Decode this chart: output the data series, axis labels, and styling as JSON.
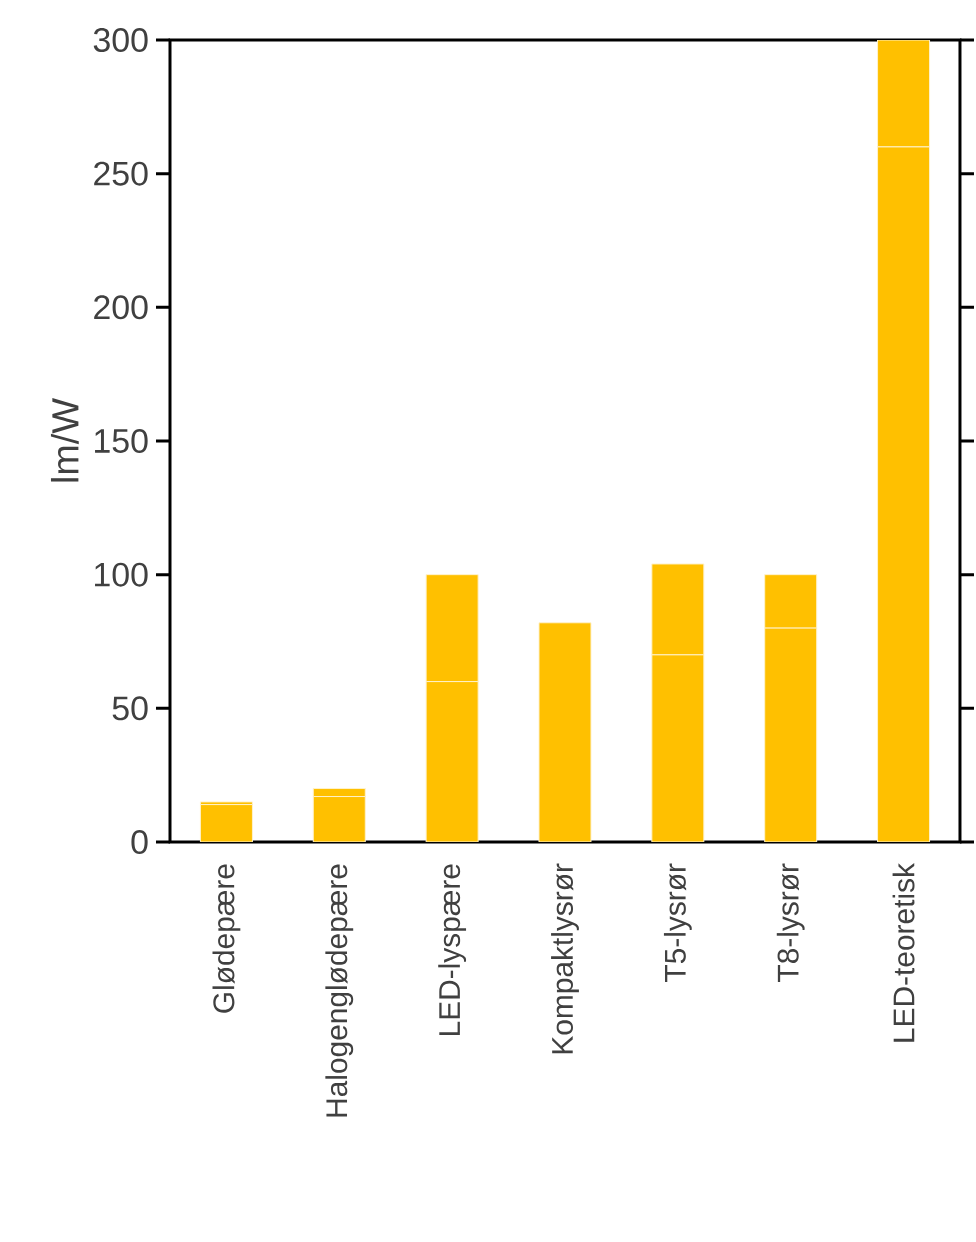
{
  "chart_data": {
    "type": "bar",
    "ylabel": "lm/W",
    "stacked": true,
    "categories": [
      "Glødepære",
      "Halogenglødepære",
      "LED-lyspære",
      "Kompaktlysrør",
      "T5-lysrør",
      "T8-lysrør",
      "LED-teoretisk"
    ],
    "series": [
      {
        "color": "#ffc000",
        "values": [
          14,
          17,
          60,
          82,
          70,
          80,
          260
        ]
      },
      {
        "color": "#ffc000",
        "values": [
          1,
          3,
          40,
          0,
          34,
          20,
          40
        ]
      }
    ],
    "ylim": [
      0,
      300
    ],
    "yticks": [
      0,
      50,
      100,
      150,
      200,
      250,
      300
    ],
    "grid": false
  }
}
